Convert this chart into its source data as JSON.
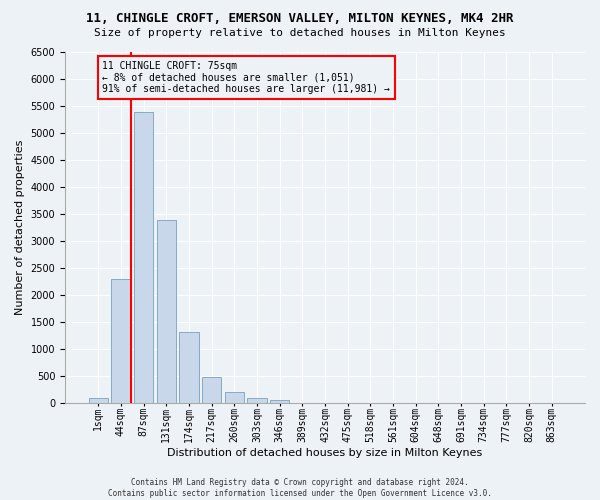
{
  "title": "11, CHINGLE CROFT, EMERSON VALLEY, MILTON KEYNES, MK4 2HR",
  "subtitle": "Size of property relative to detached houses in Milton Keynes",
  "xlabel": "Distribution of detached houses by size in Milton Keynes",
  "ylabel": "Number of detached properties",
  "footer_line1": "Contains HM Land Registry data © Crown copyright and database right 2024.",
  "footer_line2": "Contains public sector information licensed under the Open Government Licence v3.0.",
  "annotation_title": "11 CHINGLE CROFT: 75sqm",
  "annotation_line1": "← 8% of detached houses are smaller (1,051)",
  "annotation_line2": "91% of semi-detached houses are larger (11,981) →",
  "bar_labels": [
    "1sqm",
    "44sqm",
    "87sqm",
    "131sqm",
    "174sqm",
    "217sqm",
    "260sqm",
    "303sqm",
    "346sqm",
    "389sqm",
    "432sqm",
    "475sqm",
    "518sqm",
    "561sqm",
    "604sqm",
    "648sqm",
    "691sqm",
    "734sqm",
    "777sqm",
    "820sqm",
    "863sqm"
  ],
  "bar_heights": [
    75,
    2280,
    5380,
    3380,
    1310,
    480,
    195,
    90,
    45,
    0,
    0,
    0,
    0,
    0,
    0,
    0,
    0,
    0,
    0,
    0,
    0
  ],
  "bar_color": "#c8d8ea",
  "bar_edge_color": "#7aa0c0",
  "red_line_bin_index": 1,
  "ylim_max": 6500,
  "bg_color": "#edf2f7",
  "grid_color": "#ffffff",
  "title_fontsize": 9,
  "subtitle_fontsize": 8,
  "ylabel_fontsize": 8,
  "xlabel_fontsize": 8,
  "tick_fontsize": 7,
  "annot_fontsize": 7,
  "footer_fontsize": 5.5
}
